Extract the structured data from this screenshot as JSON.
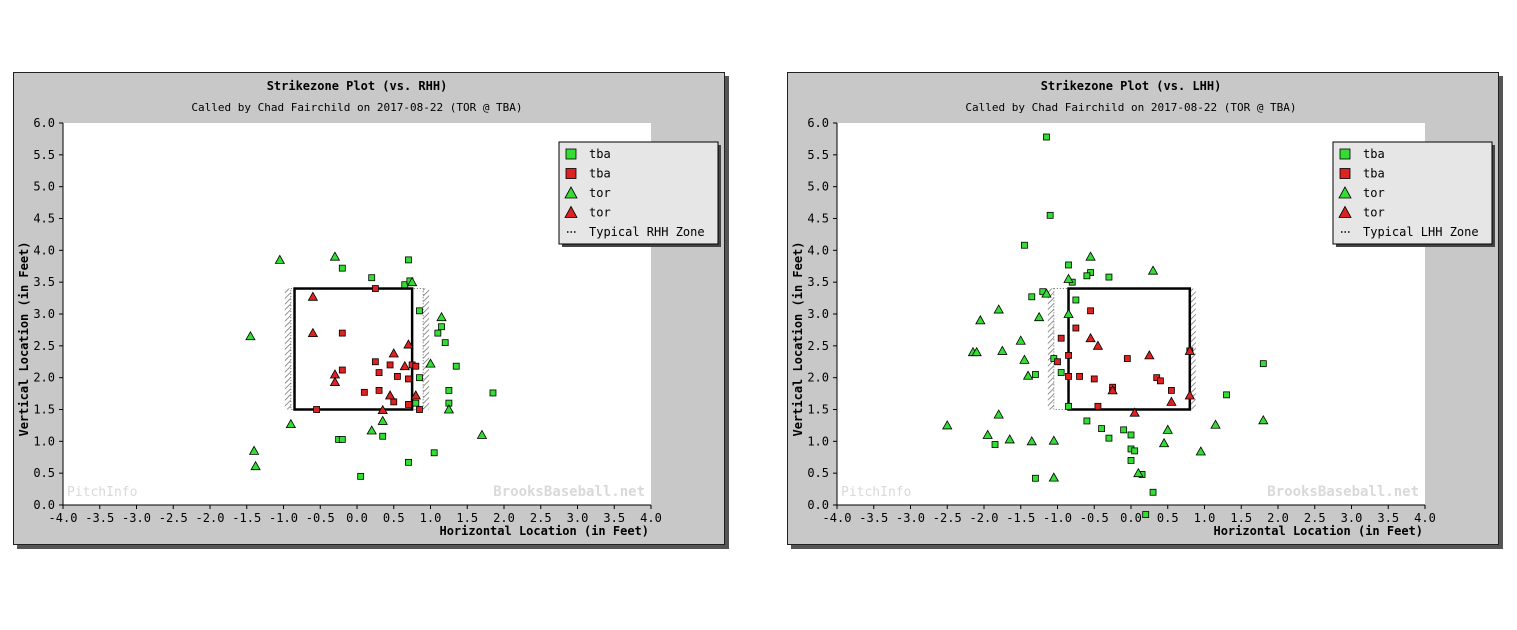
{
  "colors": {
    "frame_bg": "#c8c8c8",
    "plot_bg": "#ffffff",
    "green": "#33dd33",
    "red": "#dd2222",
    "legend_bg": "#e6e6e6",
    "zone": "#000000",
    "watermark": "#d9d9d9"
  },
  "chart_data": [
    {
      "type": "scatter",
      "title": "Strikezone Plot (vs. RHH)",
      "subtitle": "Called by Chad Fairchild on 2017-08-22 (TOR @ TBA)",
      "xlabel": "Horizontal Location (in Feet)",
      "ylabel": "Vertical Location (in Feet)",
      "xlim": [
        -4.0,
        4.0
      ],
      "ylim": [
        0.0,
        6.0
      ],
      "x_ticks": [
        "-4.0",
        "-3.5",
        "-3.0",
        "-2.5",
        "-2.0",
        "-1.5",
        "-1.0",
        "-0.5",
        "0.0",
        "0.5",
        "1.0",
        "1.5",
        "2.0",
        "2.5",
        "3.0",
        "3.5",
        "4.0"
      ],
      "y_ticks": [
        "0.0",
        "0.5",
        "1.0",
        "1.5",
        "2.0",
        "2.5",
        "3.0",
        "3.5",
        "4.0",
        "4.5",
        "5.0",
        "5.5",
        "6.0"
      ],
      "legend_position": "top-right",
      "watermark_left": "PitchInfo",
      "watermark_right": "BrooksBaseball.net",
      "zone": {
        "label": "Typical RHH Zone",
        "x": [
          -0.9,
          0.9
        ],
        "y": [
          1.5,
          3.4
        ],
        "solid_x": [
          -0.85,
          0.75
        ]
      },
      "series": [
        {
          "name": "tba",
          "marker": "square",
          "color": "green",
          "points": [
            [
              -0.2,
              3.72
            ],
            [
              0.2,
              3.57
            ],
            [
              0.7,
              3.85
            ],
            [
              0.65,
              3.46
            ],
            [
              0.72,
              3.52
            ],
            [
              0.85,
              3.05
            ],
            [
              1.1,
              2.7
            ],
            [
              1.15,
              2.8
            ],
            [
              1.2,
              2.55
            ],
            [
              1.35,
              2.18
            ],
            [
              1.25,
              1.8
            ],
            [
              1.25,
              1.6
            ],
            [
              1.85,
              1.76
            ],
            [
              1.05,
              0.82
            ],
            [
              0.7,
              0.67
            ],
            [
              0.05,
              0.45
            ],
            [
              -0.25,
              1.03
            ],
            [
              -0.2,
              1.03
            ],
            [
              0.35,
              1.08
            ],
            [
              0.8,
              1.6
            ],
            [
              0.85,
              2.0
            ]
          ]
        },
        {
          "name": "tba",
          "marker": "square",
          "color": "red",
          "points": [
            [
              -0.2,
              2.7
            ],
            [
              -0.2,
              2.12
            ],
            [
              0.25,
              3.4
            ],
            [
              0.25,
              2.25
            ],
            [
              0.3,
              2.08
            ],
            [
              0.45,
              2.2
            ],
            [
              0.55,
              2.02
            ],
            [
              0.7,
              1.98
            ],
            [
              0.75,
              2.2
            ],
            [
              0.8,
              2.18
            ],
            [
              0.1,
              1.77
            ],
            [
              0.3,
              1.8
            ],
            [
              0.5,
              1.62
            ],
            [
              0.7,
              1.58
            ],
            [
              -0.55,
              1.5
            ],
            [
              0.85,
              1.5
            ]
          ]
        },
        {
          "name": "tor",
          "marker": "triangle",
          "color": "green",
          "points": [
            [
              -1.05,
              3.85
            ],
            [
              -0.3,
              3.9
            ],
            [
              -1.45,
              2.65
            ],
            [
              -0.9,
              1.27
            ],
            [
              -1.4,
              0.85
            ],
            [
              -1.38,
              0.61
            ],
            [
              0.2,
              1.17
            ],
            [
              0.35,
              1.32
            ],
            [
              1.0,
              2.22
            ],
            [
              1.15,
              2.95
            ],
            [
              1.25,
              1.5
            ],
            [
              1.7,
              1.1
            ],
            [
              0.75,
              3.5
            ]
          ]
        },
        {
          "name": "tor",
          "marker": "triangle",
          "color": "red",
          "points": [
            [
              -0.6,
              3.27
            ],
            [
              -0.6,
              2.7
            ],
            [
              -0.3,
              2.05
            ],
            [
              -0.3,
              1.93
            ],
            [
              0.35,
              1.49
            ],
            [
              0.45,
              1.72
            ],
            [
              0.5,
              2.38
            ],
            [
              0.65,
              2.18
            ],
            [
              0.7,
              2.52
            ],
            [
              0.8,
              1.72
            ]
          ]
        }
      ]
    },
    {
      "type": "scatter",
      "title": "Strikezone Plot (vs. LHH)",
      "subtitle": "Called by Chad Fairchild on 2017-08-22 (TOR @ TBA)",
      "xlabel": "Horizontal Location (in Feet)",
      "ylabel": "Vertical Location (in Feet)",
      "xlim": [
        -4.0,
        4.0
      ],
      "ylim": [
        0.0,
        6.0
      ],
      "x_ticks": [
        "-4.0",
        "-3.5",
        "-3.0",
        "-2.5",
        "-2.0",
        "-1.5",
        "-1.0",
        "-0.5",
        "0.0",
        "0.5",
        "1.0",
        "1.5",
        "2.0",
        "2.5",
        "3.0",
        "3.5",
        "4.0"
      ],
      "y_ticks": [
        "0.0",
        "0.5",
        "1.0",
        "1.5",
        "2.0",
        "2.5",
        "3.0",
        "3.5",
        "4.0",
        "4.5",
        "5.0",
        "5.5",
        "6.0"
      ],
      "legend_position": "top-right",
      "watermark_left": "PitchInfo",
      "watermark_right": "BrooksBaseball.net",
      "zone": {
        "label": "Typical LHH Zone",
        "x": [
          -1.05,
          0.8
        ],
        "y": [
          1.5,
          3.4
        ],
        "solid_x": [
          -0.85,
          0.8
        ]
      },
      "series": [
        {
          "name": "tba",
          "marker": "square",
          "color": "green",
          "points": [
            [
              -1.15,
              5.78
            ],
            [
              -1.1,
              4.55
            ],
            [
              -1.45,
              4.08
            ],
            [
              -0.85,
              3.77
            ],
            [
              -0.55,
              3.65
            ],
            [
              -0.6,
              3.6
            ],
            [
              -0.3,
              3.58
            ],
            [
              -0.75,
              3.22
            ],
            [
              -0.8,
              3.5
            ],
            [
              -1.2,
              3.35
            ],
            [
              -1.35,
              3.27
            ],
            [
              -1.05,
              2.3
            ],
            [
              -1.3,
              2.05
            ],
            [
              -0.95,
              2.08
            ],
            [
              -0.6,
              1.32
            ],
            [
              -0.4,
              1.2
            ],
            [
              -0.3,
              1.05
            ],
            [
              -0.1,
              1.18
            ],
            [
              0.0,
              1.1
            ],
            [
              0.0,
              0.88
            ],
            [
              0.05,
              0.85
            ],
            [
              0.0,
              0.7
            ],
            [
              0.15,
              0.48
            ],
            [
              0.3,
              0.2
            ],
            [
              0.2,
              -0.15
            ],
            [
              -1.3,
              0.42
            ],
            [
              -1.85,
              0.95
            ],
            [
              1.8,
              2.22
            ],
            [
              1.3,
              1.73
            ],
            [
              -0.85,
              1.55
            ]
          ]
        },
        {
          "name": "tba",
          "marker": "square",
          "color": "red",
          "points": [
            [
              -0.55,
              3.05
            ],
            [
              -0.75,
              2.78
            ],
            [
              -0.95,
              2.62
            ],
            [
              -0.85,
              2.35
            ],
            [
              -1.0,
              2.25
            ],
            [
              -0.85,
              2.02
            ],
            [
              -0.7,
              2.02
            ],
            [
              -0.5,
              1.98
            ],
            [
              -0.05,
              2.3
            ],
            [
              -0.25,
              1.85
            ],
            [
              -0.25,
              1.8
            ],
            [
              -0.45,
              1.55
            ],
            [
              0.35,
              2.0
            ],
            [
              0.4,
              1.95
            ],
            [
              0.55,
              1.8
            ],
            [
              0.8,
              2.42
            ]
          ]
        },
        {
          "name": "tor",
          "marker": "triangle",
          "color": "green",
          "points": [
            [
              -0.55,
              3.9
            ],
            [
              -0.85,
              3.55
            ],
            [
              -1.15,
              3.32
            ],
            [
              -1.8,
              3.07
            ],
            [
              -2.05,
              2.9
            ],
            [
              -1.5,
              2.58
            ],
            [
              -1.75,
              2.42
            ],
            [
              -2.15,
              2.4
            ],
            [
              -2.1,
              2.4
            ],
            [
              -1.45,
              2.28
            ],
            [
              -1.4,
              2.03
            ],
            [
              -1.25,
              2.95
            ],
            [
              -0.85,
              3.0
            ],
            [
              -1.8,
              1.42
            ],
            [
              -1.95,
              1.1
            ],
            [
              -1.65,
              1.03
            ],
            [
              -1.35,
              1.0
            ],
            [
              -1.05,
              1.01
            ],
            [
              -1.05,
              0.43
            ],
            [
              -2.5,
              1.25
            ],
            [
              0.3,
              3.68
            ],
            [
              0.45,
              0.97
            ],
            [
              0.5,
              1.18
            ],
            [
              0.1,
              0.5
            ],
            [
              0.95,
              0.84
            ],
            [
              1.15,
              1.26
            ],
            [
              1.8,
              1.33
            ]
          ]
        },
        {
          "name": "tor",
          "marker": "triangle",
          "color": "red",
          "points": [
            [
              -0.55,
              2.62
            ],
            [
              -0.45,
              2.5
            ],
            [
              -0.25,
              1.8
            ],
            [
              0.05,
              1.45
            ],
            [
              0.25,
              2.35
            ],
            [
              0.55,
              1.62
            ],
            [
              0.8,
              1.72
            ],
            [
              0.8,
              2.42
            ]
          ]
        }
      ]
    }
  ]
}
